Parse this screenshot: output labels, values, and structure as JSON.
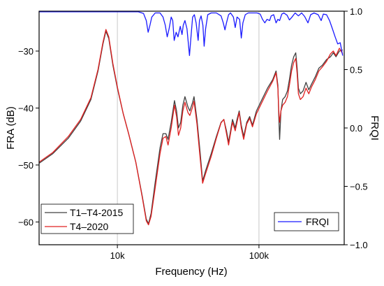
{
  "chart_data": {
    "type": "line",
    "xlabel": "Frequency (Hz)",
    "ylabel": "FRA (dB)",
    "y2label": "FRQI",
    "xscale": "log",
    "xlim": [
      2800,
      400000
    ],
    "ylim": [
      -64,
      -23
    ],
    "y2lim": [
      -1.0,
      1.0
    ],
    "xticks": [
      {
        "value": 10000,
        "label": "10k"
      },
      {
        "value": 100000,
        "label": "100k"
      }
    ],
    "yticks": [
      {
        "value": -30,
        "label": "−30"
      },
      {
        "value": -40,
        "label": "−40"
      },
      {
        "value": -50,
        "label": "−50"
      },
      {
        "value": -60,
        "label": "−60"
      }
    ],
    "y2ticks": [
      {
        "value": 1.0,
        "label": "1.0"
      },
      {
        "value": 0.5,
        "label": "0.5"
      },
      {
        "value": 0.0,
        "label": "0.0"
      },
      {
        "value": -0.5,
        "label": "−0.5"
      },
      {
        "value": -1.0,
        "label": "−1.0"
      }
    ],
    "grid": "vertical at 10k and 100k",
    "legend_left": {
      "placement": "bottom-left",
      "entries": [
        "T1–T4-2015",
        "T4–2020"
      ]
    },
    "legend_right": {
      "placement": "bottom-right",
      "entries": [
        "FRQI"
      ]
    },
    "series": [
      {
        "name": "T1–T4-2015",
        "axis": "left",
        "color": "#404040",
        "points": [
          [
            2800,
            -49.7
          ],
          [
            3500,
            -48.0
          ],
          [
            4500,
            -45.3
          ],
          [
            5500,
            -42.3
          ],
          [
            6500,
            -38.5
          ],
          [
            7300,
            -33.5
          ],
          [
            7900,
            -28.8
          ],
          [
            8300,
            -26.5
          ],
          [
            8700,
            -27.8
          ],
          [
            9300,
            -32.5
          ],
          [
            10000,
            -36.5
          ],
          [
            11000,
            -41.0
          ],
          [
            12000,
            -44.5
          ],
          [
            13500,
            -49.5
          ],
          [
            15000,
            -55.5
          ],
          [
            16000,
            -59.5
          ],
          [
            16600,
            -60.3
          ],
          [
            17300,
            -58.5
          ],
          [
            18500,
            -53.0
          ],
          [
            20000,
            -47.0
          ],
          [
            21000,
            -44.5
          ],
          [
            22000,
            -44.5
          ],
          [
            22800,
            -45.5
          ],
          [
            24000,
            -42.5
          ],
          [
            25300,
            -38.7
          ],
          [
            26200,
            -40.5
          ],
          [
            27000,
            -43.5
          ],
          [
            28000,
            -42.5
          ],
          [
            29000,
            -39.5
          ],
          [
            30000,
            -38.0
          ],
          [
            31500,
            -39.8
          ],
          [
            32500,
            -40.5
          ],
          [
            34000,
            -39.0
          ],
          [
            34800,
            -38.0
          ],
          [
            36500,
            -42.0
          ],
          [
            38500,
            -48.0
          ],
          [
            40000,
            -52.8
          ],
          [
            42000,
            -51.0
          ],
          [
            46000,
            -48.0
          ],
          [
            50000,
            -45.0
          ],
          [
            54000,
            -42.5
          ],
          [
            56500,
            -42.0
          ],
          [
            59000,
            -44.0
          ],
          [
            61000,
            -46.0
          ],
          [
            63000,
            -44.0
          ],
          [
            65000,
            -42.0
          ],
          [
            68000,
            -43.5
          ],
          [
            70000,
            -42.0
          ],
          [
            72500,
            -40.5
          ],
          [
            75000,
            -43.0
          ],
          [
            78000,
            -45.0
          ],
          [
            82000,
            -42.5
          ],
          [
            86000,
            -41.5
          ],
          [
            90000,
            -43.0
          ],
          [
            96000,
            -40.5
          ],
          [
            105000,
            -38.5
          ],
          [
            115000,
            -36.5
          ],
          [
            125000,
            -35.0
          ],
          [
            132000,
            -33.5
          ],
          [
            136000,
            -36.0
          ],
          [
            138000,
            -41.5
          ],
          [
            140000,
            -45.5
          ],
          [
            143000,
            -40.5
          ],
          [
            147000,
            -38.5
          ],
          [
            153000,
            -38.0
          ],
          [
            159000,
            -37.0
          ],
          [
            164000,
            -35.0
          ],
          [
            170000,
            -32.5
          ],
          [
            176000,
            -31.0
          ],
          [
            182000,
            -30.3
          ],
          [
            186000,
            -33.0
          ],
          [
            190000,
            -36.5
          ],
          [
            196000,
            -37.5
          ],
          [
            205000,
            -37.0
          ],
          [
            215000,
            -35.5
          ],
          [
            225000,
            -36.8
          ],
          [
            235000,
            -35.8
          ],
          [
            250000,
            -34.5
          ],
          [
            265000,
            -33.0
          ],
          [
            280000,
            -32.5
          ],
          [
            300000,
            -31.5
          ],
          [
            320000,
            -31.0
          ],
          [
            335000,
            -30.3
          ],
          [
            350000,
            -31.0
          ],
          [
            370000,
            -30.0
          ],
          [
            390000,
            -29.8
          ]
        ]
      },
      {
        "name": "T4–2020",
        "axis": "left",
        "color": "#e02020",
        "points": [
          [
            2800,
            -49.5
          ],
          [
            3500,
            -47.8
          ],
          [
            4500,
            -45.0
          ],
          [
            5500,
            -42.0
          ],
          [
            6500,
            -38.2
          ],
          [
            7300,
            -33.2
          ],
          [
            7900,
            -28.5
          ],
          [
            8300,
            -26.2
          ],
          [
            8700,
            -27.5
          ],
          [
            9300,
            -32.2
          ],
          [
            10000,
            -36.3
          ],
          [
            11000,
            -41.0
          ],
          [
            12000,
            -44.5
          ],
          [
            13500,
            -49.5
          ],
          [
            15000,
            -55.7
          ],
          [
            16000,
            -59.8
          ],
          [
            16600,
            -60.5
          ],
          [
            17300,
            -59.0
          ],
          [
            18500,
            -54.0
          ],
          [
            20000,
            -48.0
          ],
          [
            21000,
            -45.3
          ],
          [
            22000,
            -45.0
          ],
          [
            22800,
            -46.5
          ],
          [
            24000,
            -43.5
          ],
          [
            25300,
            -39.5
          ],
          [
            26200,
            -41.5
          ],
          [
            27000,
            -44.8
          ],
          [
            28000,
            -43.5
          ],
          [
            29000,
            -40.5
          ],
          [
            30000,
            -39.0
          ],
          [
            31500,
            -40.8
          ],
          [
            32500,
            -41.3
          ],
          [
            34000,
            -39.8
          ],
          [
            34800,
            -38.8
          ],
          [
            36500,
            -42.8
          ],
          [
            38500,
            -49.0
          ],
          [
            40000,
            -53.2
          ],
          [
            42000,
            -51.5
          ],
          [
            46000,
            -48.5
          ],
          [
            50000,
            -45.3
          ],
          [
            54000,
            -42.6
          ],
          [
            56500,
            -42.0
          ],
          [
            59000,
            -44.5
          ],
          [
            61000,
            -46.5
          ],
          [
            63000,
            -44.5
          ],
          [
            65000,
            -42.5
          ],
          [
            68000,
            -44.0
          ],
          [
            70000,
            -42.5
          ],
          [
            72500,
            -40.8
          ],
          [
            75000,
            -43.5
          ],
          [
            78000,
            -45.5
          ],
          [
            82000,
            -42.8
          ],
          [
            86000,
            -41.8
          ],
          [
            90000,
            -43.3
          ],
          [
            96000,
            -41.0
          ],
          [
            105000,
            -39.0
          ],
          [
            115000,
            -37.0
          ],
          [
            125000,
            -35.3
          ],
          [
            132000,
            -33.8
          ],
          [
            136000,
            -36.5
          ],
          [
            138000,
            -40.5
          ],
          [
            140000,
            -42.5
          ],
          [
            143000,
            -40.5
          ],
          [
            147000,
            -39.5
          ],
          [
            153000,
            -39.0
          ],
          [
            159000,
            -38.0
          ],
          [
            164000,
            -36.0
          ],
          [
            170000,
            -33.5
          ],
          [
            176000,
            -32.0
          ],
          [
            182000,
            -31.3
          ],
          [
            186000,
            -34.0
          ],
          [
            190000,
            -37.5
          ],
          [
            196000,
            -38.5
          ],
          [
            205000,
            -38.0
          ],
          [
            215000,
            -36.5
          ],
          [
            225000,
            -37.5
          ],
          [
            235000,
            -36.3
          ],
          [
            250000,
            -35.0
          ],
          [
            265000,
            -33.5
          ],
          [
            280000,
            -32.8
          ],
          [
            300000,
            -31.8
          ],
          [
            320000,
            -30.5
          ],
          [
            335000,
            -30.0
          ],
          [
            350000,
            -30.8
          ],
          [
            370000,
            -29.5
          ],
          [
            390000,
            -30.5
          ]
        ]
      },
      {
        "name": "FRQI",
        "axis": "right",
        "color": "#1a1aff",
        "points": [
          [
            2800,
            0.995
          ],
          [
            14000,
            0.995
          ],
          [
            15300,
            0.98
          ],
          [
            16000,
            0.92
          ],
          [
            16500,
            0.82
          ],
          [
            17000,
            0.88
          ],
          [
            17500,
            0.95
          ],
          [
            18500,
            0.985
          ],
          [
            20000,
            0.985
          ],
          [
            21000,
            0.95
          ],
          [
            21800,
            0.88
          ],
          [
            22500,
            0.78
          ],
          [
            23200,
            0.85
          ],
          [
            24000,
            0.95
          ],
          [
            24600,
            0.92
          ],
          [
            25200,
            0.75
          ],
          [
            26000,
            0.82
          ],
          [
            26800,
            0.78
          ],
          [
            27800,
            0.87
          ],
          [
            28600,
            0.8
          ],
          [
            29200,
            0.88
          ],
          [
            30000,
            0.92
          ],
          [
            31000,
            0.85
          ],
          [
            32300,
            0.62
          ],
          [
            33200,
            0.8
          ],
          [
            34000,
            0.95
          ],
          [
            35000,
            0.97
          ],
          [
            36000,
            0.9
          ],
          [
            37200,
            0.75
          ],
          [
            38000,
            0.92
          ],
          [
            39000,
            0.96
          ],
          [
            40200,
            0.88
          ],
          [
            41000,
            0.7
          ],
          [
            42000,
            0.85
          ],
          [
            43500,
            0.97
          ],
          [
            46000,
            0.985
          ],
          [
            50000,
            0.985
          ],
          [
            54000,
            0.96
          ],
          [
            56000,
            0.9
          ],
          [
            57500,
            0.84
          ],
          [
            59000,
            0.9
          ],
          [
            61000,
            0.97
          ],
          [
            63000,
            0.985
          ],
          [
            66000,
            0.95
          ],
          [
            68000,
            0.86
          ],
          [
            70000,
            0.95
          ],
          [
            73000,
            0.93
          ],
          [
            75000,
            0.77
          ],
          [
            77000,
            0.9
          ],
          [
            80000,
            0.97
          ],
          [
            84000,
            0.985
          ],
          [
            90000,
            0.985
          ],
          [
            97000,
            0.985
          ],
          [
            102000,
            0.975
          ],
          [
            106000,
            0.93
          ],
          [
            110000,
            0.9
          ],
          [
            114000,
            0.93
          ],
          [
            119000,
            0.92
          ],
          [
            122000,
            0.96
          ],
          [
            127000,
            0.97
          ],
          [
            132000,
            0.9
          ],
          [
            136000,
            0.93
          ],
          [
            140000,
            0.92
          ],
          [
            145000,
            0.975
          ],
          [
            150000,
            0.985
          ],
          [
            158000,
            0.965
          ],
          [
            164000,
            0.925
          ],
          [
            170000,
            0.945
          ],
          [
            180000,
            0.985
          ],
          [
            190000,
            0.96
          ],
          [
            200000,
            0.985
          ],
          [
            210000,
            0.955
          ],
          [
            222000,
            0.9
          ],
          [
            232000,
            0.97
          ],
          [
            245000,
            0.985
          ],
          [
            262000,
            0.97
          ],
          [
            275000,
            0.92
          ],
          [
            285000,
            0.975
          ],
          [
            300000,
            0.97
          ],
          [
            315000,
            0.92
          ],
          [
            330000,
            0.85
          ],
          [
            345000,
            0.78
          ],
          [
            360000,
            0.72
          ],
          [
            375000,
            0.73
          ],
          [
            390000,
            0.62
          ]
        ]
      }
    ]
  }
}
